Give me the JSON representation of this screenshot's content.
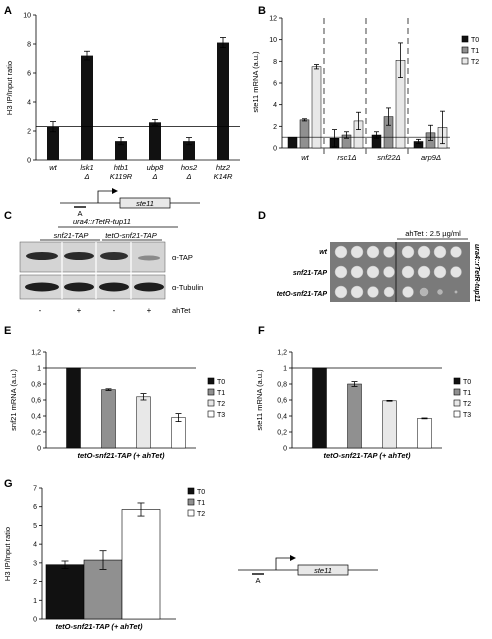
{
  "panels": {
    "A": "A",
    "B": "B",
    "C": "C",
    "D": "D",
    "E": "E",
    "F": "F",
    "G": "G"
  },
  "colors": {
    "T0": "#111111",
    "T1": "#909090",
    "T2": "#e8e8e8",
    "T3": "#ffffff",
    "gel_bg": "#d0d0d0",
    "plate_bg": "#7a7a7a"
  },
  "chart_data": [
    {
      "id": "A",
      "type": "bar",
      "ylabel": "H3 IP/Input ratio",
      "ylim": [
        0,
        10
      ],
      "yticks": [
        0,
        2,
        4,
        6,
        8,
        10
      ],
      "reference_line": 2.3,
      "categories": [
        [
          "wt"
        ],
        [
          "lsk1",
          "Δ"
        ],
        [
          "htb1",
          "K119R"
        ],
        [
          "ubp8",
          "Δ"
        ],
        [
          "hos2",
          "Δ"
        ],
        [
          "htz2",
          "K14R"
        ]
      ],
      "values": [
        2.3,
        7.2,
        1.3,
        2.6,
        1.3,
        8.1
      ],
      "errors": [
        0.35,
        0.3,
        0.25,
        0.2,
        0.25,
        0.35
      ],
      "gene_label": "ste11",
      "primer_label": "A"
    },
    {
      "id": "B",
      "type": "bar",
      "ylabel": "ste11 mRNA (a.u.)",
      "ylim": [
        0,
        12
      ],
      "yticks": [
        0,
        2,
        4,
        6,
        8,
        10,
        12
      ],
      "reference_line": 1,
      "categories": [
        "wt",
        "rsc1Δ",
        "snf22Δ",
        "arp9Δ"
      ],
      "series": [
        {
          "name": "T0",
          "values": [
            1,
            0.9,
            1.2,
            0.6
          ],
          "errors": [
            0,
            0.8,
            0.3,
            0.2
          ]
        },
        {
          "name": "T1",
          "values": [
            2.6,
            1.2,
            2.9,
            1.4
          ],
          "errors": [
            0.1,
            0.3,
            0.8,
            0.7
          ]
        },
        {
          "name": "T2",
          "values": [
            7.5,
            2.5,
            8.1,
            1.9
          ],
          "errors": [
            0.2,
            0.8,
            1.6,
            1.5
          ]
        }
      ]
    },
    {
      "id": "E",
      "type": "bar",
      "ylabel": "snf21 mRNA (a.u.)",
      "ylim": [
        0,
        1.2
      ],
      "yticks": [
        "0",
        "0,2",
        "0,4",
        "0,6",
        "0,8",
        "1",
        "1,2"
      ],
      "reference_line": 1,
      "xlabel": "tetO-snf21-TAP (+ ahTet)",
      "series": [
        {
          "name": "T0",
          "value": 1,
          "error": 0
        },
        {
          "name": "T1",
          "value": 0.73,
          "error": 0.01
        },
        {
          "name": "T2",
          "value": 0.64,
          "error": 0.04
        },
        {
          "name": "T3",
          "value": 0.38,
          "error": 0.05
        }
      ]
    },
    {
      "id": "F",
      "type": "bar",
      "ylabel": "ste11 mRNA (a.u.)",
      "ylim": [
        0,
        1.2
      ],
      "yticks": [
        "0",
        "0,2",
        "0,4",
        "0,6",
        "0,8",
        "1",
        "1,2"
      ],
      "reference_line": 1,
      "xlabel": "tetO-snf21-TAP (+ ahTet)",
      "series": [
        {
          "name": "T0",
          "value": 1,
          "error": 0
        },
        {
          "name": "T1",
          "value": 0.8,
          "error": 0.03
        },
        {
          "name": "T2",
          "value": 0.59,
          "error": 0.005
        },
        {
          "name": "T3",
          "value": 0.37,
          "error": 0.005
        }
      ]
    },
    {
      "id": "G",
      "type": "bar",
      "ylabel": "H3 IP/Input ratio",
      "ylim": [
        0,
        7
      ],
      "yticks": [
        0,
        1,
        2,
        3,
        4,
        5,
        6,
        7
      ],
      "xlabel": "tetO-snf21-TAP (+ ahTet)",
      "series": [
        {
          "name": "T0",
          "value": 2.9,
          "error": 0.2
        },
        {
          "name": "T1",
          "value": 3.15,
          "error": 0.5
        },
        {
          "name": "T2",
          "value": 5.85,
          "error": 0.35
        }
      ],
      "gene_label": "ste11",
      "primer_label": "A"
    }
  ],
  "panel_C": {
    "header": "ura4::rTetR-tup11",
    "groups": [
      "snf21-TAP",
      "tetO-snf21-TAP"
    ],
    "rows": [
      "α-TAP",
      "α-Tubulin"
    ],
    "lanes": [
      "-",
      "+",
      "-",
      "+"
    ],
    "treatment": "ahTet"
  },
  "panel_D": {
    "treatment": "ahTet : 2.5 µg/ml",
    "rows": [
      "wt",
      "snf21-TAP",
      "tetO-snf21-TAP"
    ],
    "side_label": "ura4::rTetR-tup11"
  }
}
